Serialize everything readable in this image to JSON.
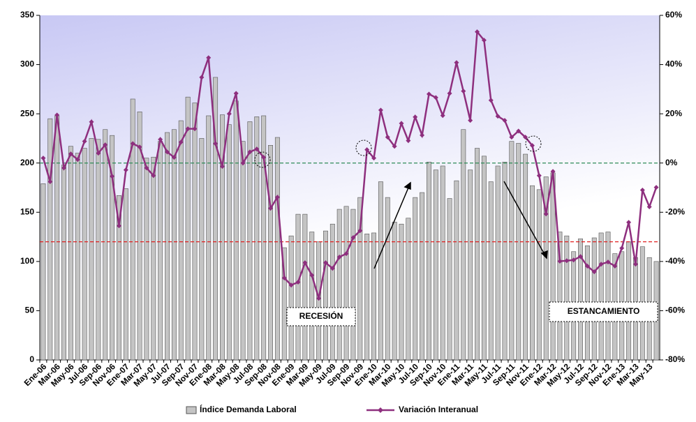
{
  "chart_data": {
    "type": "bar-line",
    "categories": [
      "Ene-06",
      null,
      "Mar-06",
      null,
      "May-06",
      null,
      "Jul-06",
      null,
      "Sep-06",
      null,
      "Nov-06",
      null,
      "Ene-07",
      null,
      "Mar-07",
      null,
      "May-07",
      null,
      "Jul-07",
      null,
      "Sep-07",
      null,
      "Nov-07",
      null,
      "Ene-08",
      null,
      "Mar-08",
      null,
      "May-08",
      null,
      "Jul-08",
      null,
      "Sep-08",
      null,
      "Nov-08",
      null,
      "Ene-09",
      null,
      "Mar-09",
      null,
      "May-09",
      null,
      "Jul-09",
      null,
      "Sep-09",
      null,
      "Nov-09",
      null,
      "Ene-10",
      null,
      "Mar-10",
      null,
      "May-10",
      null,
      "Jul-10",
      null,
      "Sep-10",
      null,
      "Nov-10",
      null,
      "Ene-11",
      null,
      "Mar-11",
      null,
      "May-11",
      null,
      "Jul-11",
      null,
      "Sep-11",
      null,
      "Nov-11",
      null,
      "Ene-12",
      null,
      "Mar-12",
      null,
      "May-12",
      null,
      "Jul-12",
      null,
      "Sep-12",
      null,
      "Nov-12",
      null,
      "Ene-13",
      null,
      "Mar-13",
      null,
      "May-13",
      null
    ],
    "series": [
      {
        "name": "Índice Demanda Laboral",
        "type": "bar",
        "color": "#c4c4c4",
        "axis": "y",
        "values": [
          179,
          245,
          248,
          198,
          217,
          210,
          215,
          225,
          224,
          234,
          228,
          167,
          174,
          265,
          252,
          205,
          206,
          222,
          231,
          234,
          243,
          267,
          261,
          225,
          248,
          287,
          249,
          239,
          263,
          222,
          242,
          247,
          248,
          218,
          226,
          114,
          126,
          148,
          148,
          130,
          120,
          131,
          138,
          153,
          156,
          153,
          165,
          128,
          129,
          181,
          165,
          140,
          138,
          144,
          165,
          170,
          201,
          193,
          197,
          164,
          182,
          234,
          193,
          215,
          207,
          181,
          197,
          201,
          222,
          220,
          209,
          177,
          173,
          186,
          190,
          130,
          126,
          110,
          123,
          116,
          124,
          129,
          130,
          108,
          110,
          120,
          104,
          115,
          104,
          100
        ]
      },
      {
        "name": "Variación Interanual",
        "type": "line",
        "color": "#8e2f7e",
        "axis": "y2",
        "values": [
          2,
          -7.6,
          19.5,
          -2,
          3.7,
          1.4,
          8.8,
          16.7,
          4,
          7.4,
          -5.4,
          -25.5,
          -2.8,
          7.9,
          6.5,
          -2,
          -5.1,
          9.6,
          4.5,
          2.3,
          8.5,
          13.9,
          13.9,
          34.8,
          42.8,
          7.9,
          -1.4,
          20,
          28.3,
          0,
          4.5,
          5.7,
          2.3,
          -18.4,
          -13.9,
          -46.7,
          -49.6,
          -48.4,
          -40.5,
          -45.6,
          -55,
          -40.5,
          -42.8,
          -38.2,
          -36.8,
          -30.3,
          -27.5,
          5.4,
          2,
          21.5,
          10.5,
          6.8,
          16.1,
          9.1,
          18.7,
          11.3,
          28,
          26.6,
          19.3,
          28.3,
          40.8,
          29.2,
          17.3,
          53.3,
          49.9,
          25.5,
          19,
          17.3,
          10.5,
          13,
          10.5,
          7.1,
          -5.1,
          -20.7,
          -3.4,
          -39.9,
          -39.7,
          -39.4,
          -38,
          -41.9,
          -44.2,
          -41.1,
          -40.2,
          -41.9,
          -34.6,
          -24.1,
          -41.1,
          -11,
          -17.8,
          -9.9
        ]
      }
    ],
    "ylim": [
      0,
      350
    ],
    "yticks": [
      0,
      50,
      100,
      150,
      200,
      250,
      300,
      350
    ],
    "y2lim": [
      -80,
      60
    ],
    "y2ticks": [
      {
        "value": -80,
        "label": "-80%"
      },
      {
        "value": -60,
        "label": "-60%"
      },
      {
        "value": -40,
        "label": "-40%"
      },
      {
        "value": -20,
        "label": "-20%"
      },
      {
        "value": 0,
        "label": "0%"
      },
      {
        "value": 20,
        "label": "20%"
      },
      {
        "value": 40,
        "label": "40%"
      },
      {
        "value": 60,
        "label": "60%"
      }
    ],
    "reference_lines": [
      {
        "axis": "y",
        "value": 120,
        "color": "#e02020"
      },
      {
        "axis": "y2",
        "value": 0,
        "color": "#2e8b57"
      }
    ],
    "annotations": [
      "RECESIÓN",
      "ESTANCAMIENTO"
    ],
    "legend": "bottom"
  }
}
